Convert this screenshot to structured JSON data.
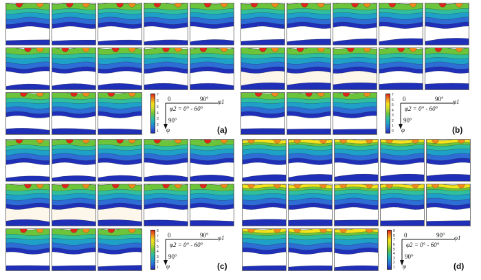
{
  "panels": [
    {
      "label": "(a)",
      "cells": 13,
      "colorbar": [
        "7",
        "6",
        "5",
        "4",
        "3",
        "2",
        "1"
      ],
      "axes": {
        "origin": "0",
        "x_tick": "90°",
        "x_var": "φ1",
        "range": "φ2 = 0° - 60°",
        "y_tick": "90°",
        "y_var": "φ"
      }
    },
    {
      "label": "(b)",
      "cells": 13,
      "colorbar": [
        "7",
        "6",
        "5",
        "4",
        "3",
        "2",
        "1",
        "0"
      ],
      "axes": {
        "origin": "0",
        "x_tick": "90°",
        "x_var": "φ1",
        "range": "φ2 = 0° - 60°",
        "y_tick": "90°",
        "y_var": "φ"
      }
    },
    {
      "label": "(c)",
      "cells": 13,
      "colorbar": [
        "8",
        "7",
        "6",
        "5",
        "4",
        "3",
        "2",
        "1"
      ],
      "axes": {
        "origin": "0",
        "x_tick": "90°",
        "x_var": "φ1",
        "range": "φ2 = 0° - 60°",
        "y_tick": "90°",
        "y_var": "φ"
      }
    },
    {
      "label": "(d)",
      "cells": 13,
      "colorbar": [
        "9",
        "8",
        "7",
        "6",
        "5",
        "4",
        "3",
        "2",
        "1"
      ],
      "axes": {
        "origin": "0",
        "x_tick": "90°",
        "x_var": "φ1",
        "range": "φ2 = 0° - 60°",
        "y_tick": "90°",
        "y_var": "φ"
      }
    }
  ],
  "colors": {
    "c1": "#1f2fb8",
    "c2": "#2e6cd6",
    "c3": "#1fa0c8",
    "c4": "#2fbfa0",
    "c5": "#6cc43a",
    "c6": "#c9d92b",
    "c7": "#f3e21c",
    "c8": "#f08a1c",
    "c9": "#e0261a",
    "odf_bg": "#fdf6ea"
  }
}
